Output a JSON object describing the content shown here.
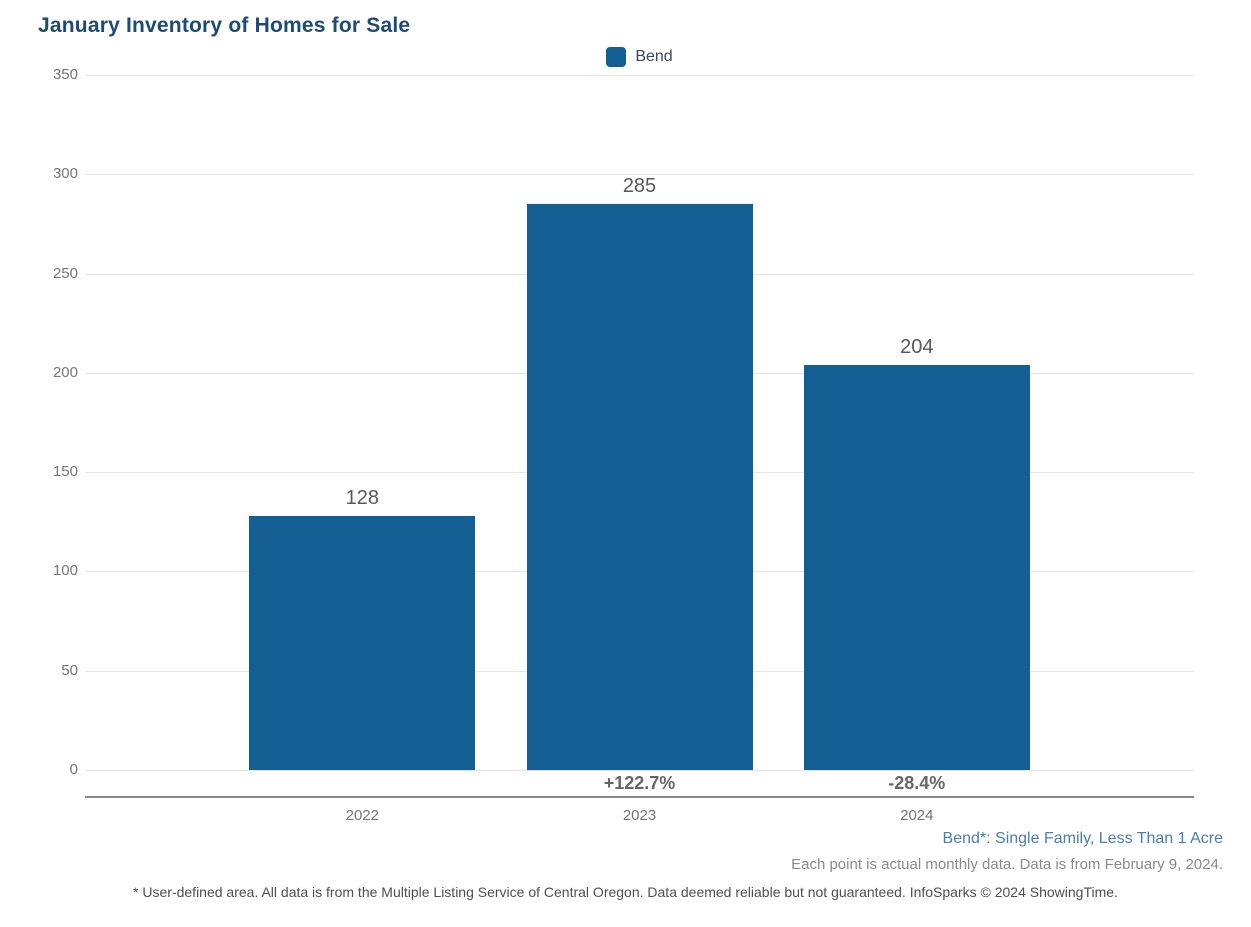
{
  "chart_data": {
    "type": "bar",
    "title": "January Inventory of Homes for Sale",
    "categories": [
      "2022",
      "2023",
      "2024"
    ],
    "series": [
      {
        "name": "Bend",
        "values": [
          128,
          285,
          204
        ]
      }
    ],
    "change_labels": [
      "",
      "+122.7%",
      "-28.4%"
    ],
    "xlabel": "",
    "ylabel": "",
    "ylim": [
      0,
      350
    ],
    "ytick_interval": 50,
    "xlim": [
      2021,
      2025
    ],
    "grid": true,
    "legend_position": "top-center",
    "bar_color": "#135E92"
  },
  "footnotes": {
    "series_note": "Bend*: Single Family, Less Than 1 Acre",
    "data_note": "Each point is actual monthly data. Data is from February 9, 2024.",
    "disclaimer": "* User-defined area. All data is from the Multiple Listing Service of Central Oregon. Data deemed reliable but not guaranteed. InfoSparks © 2024 ShowingTime."
  },
  "colors": {
    "bar": "#135E92",
    "title": "#1D4B75",
    "gridline": "#E6E6E6",
    "axis_line": "#8A8A8A",
    "tick_text": "#757575",
    "value_text": "#595959",
    "pct_text": "#666666",
    "series_note_text": "#4A7FAE",
    "data_note_text": "#8B8B8B",
    "disclaimer_text": "#4F4F4F"
  }
}
